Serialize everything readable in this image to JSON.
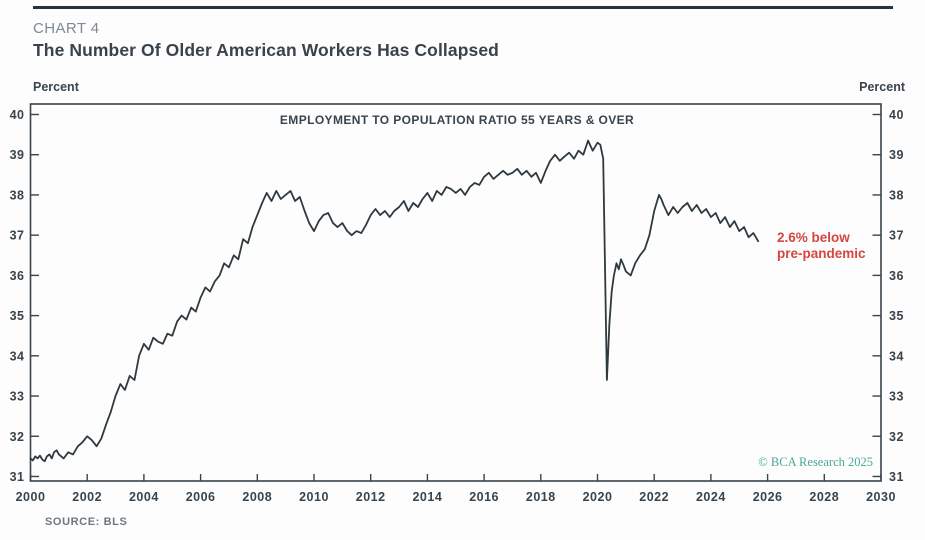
{
  "header": {
    "kicker": "CHART 4",
    "title": "The Number Of Older American Workers Has Collapsed"
  },
  "chart": {
    "left_unit": "Percent",
    "right_unit": "Percent",
    "series_label": "EMPLOYMENT TO POPULATION RATIO 55 YEARS & OVER",
    "annotation": {
      "text": "2.6% below\npre-pandemic",
      "color": "#d6453e"
    },
    "watermark": {
      "text": "© BCA Research 2025",
      "color": "#4aa89a"
    },
    "source": "SOURCE: BLS"
  },
  "chart_data": {
    "type": "line",
    "title": "EMPLOYMENT TO POPULATION RATIO 55 YEARS & OVER",
    "xlabel": "",
    "ylabel": "Percent",
    "xlim": [
      2000,
      2030
    ],
    "ylim": [
      30.9,
      40.3
    ],
    "grid": false,
    "legend_position": "none",
    "x_ticks": [
      2000,
      2002,
      2004,
      2006,
      2008,
      2010,
      2012,
      2014,
      2016,
      2018,
      2020,
      2022,
      2024,
      2026,
      2028,
      2030
    ],
    "y_ticks": [
      31,
      32,
      33,
      34,
      35,
      36,
      37,
      38,
      39,
      40
    ],
    "frame_color": "#39444c",
    "line_color": "#2e3940",
    "annotations": [
      {
        "text": "2.6% below pre-pandemic",
        "x": 2026.4,
        "y": 37.0,
        "color": "#d6453e"
      },
      {
        "text": "© BCA Research 2025",
        "x": 2027.5,
        "y": 31.5,
        "color": "#4aa89a"
      }
    ],
    "series": [
      {
        "name": "Employment to population ratio, 55 years & over",
        "points": [
          [
            2000.0,
            31.45
          ],
          [
            2000.08,
            31.4
          ],
          [
            2000.17,
            31.5
          ],
          [
            2000.25,
            31.45
          ],
          [
            2000.33,
            31.52
          ],
          [
            2000.42,
            31.42
          ],
          [
            2000.5,
            31.38
          ],
          [
            2000.58,
            31.5
          ],
          [
            2000.67,
            31.55
          ],
          [
            2000.75,
            31.45
          ],
          [
            2000.83,
            31.6
          ],
          [
            2000.92,
            31.65
          ],
          [
            2001.0,
            31.55
          ],
          [
            2001.17,
            31.45
          ],
          [
            2001.33,
            31.6
          ],
          [
            2001.5,
            31.55
          ],
          [
            2001.67,
            31.75
          ],
          [
            2001.83,
            31.85
          ],
          [
            2002.0,
            32.0
          ],
          [
            2002.17,
            31.9
          ],
          [
            2002.33,
            31.75
          ],
          [
            2002.5,
            31.95
          ],
          [
            2002.67,
            32.3
          ],
          [
            2002.83,
            32.6
          ],
          [
            2003.0,
            33.0
          ],
          [
            2003.17,
            33.3
          ],
          [
            2003.33,
            33.15
          ],
          [
            2003.5,
            33.5
          ],
          [
            2003.67,
            33.4
          ],
          [
            2003.83,
            34.0
          ],
          [
            2004.0,
            34.3
          ],
          [
            2004.17,
            34.15
          ],
          [
            2004.33,
            34.45
          ],
          [
            2004.5,
            34.35
          ],
          [
            2004.67,
            34.3
          ],
          [
            2004.83,
            34.55
          ],
          [
            2005.0,
            34.5
          ],
          [
            2005.17,
            34.85
          ],
          [
            2005.33,
            35.0
          ],
          [
            2005.5,
            34.9
          ],
          [
            2005.67,
            35.2
          ],
          [
            2005.83,
            35.1
          ],
          [
            2006.0,
            35.45
          ],
          [
            2006.17,
            35.7
          ],
          [
            2006.33,
            35.6
          ],
          [
            2006.5,
            35.85
          ],
          [
            2006.67,
            36.0
          ],
          [
            2006.83,
            36.3
          ],
          [
            2007.0,
            36.2
          ],
          [
            2007.17,
            36.5
          ],
          [
            2007.33,
            36.4
          ],
          [
            2007.5,
            36.9
          ],
          [
            2007.67,
            36.8
          ],
          [
            2007.83,
            37.2
          ],
          [
            2008.0,
            37.5
          ],
          [
            2008.17,
            37.8
          ],
          [
            2008.33,
            38.05
          ],
          [
            2008.5,
            37.85
          ],
          [
            2008.67,
            38.1
          ],
          [
            2008.83,
            37.9
          ],
          [
            2009.0,
            38.0
          ],
          [
            2009.17,
            38.1
          ],
          [
            2009.33,
            37.85
          ],
          [
            2009.5,
            37.95
          ],
          [
            2009.67,
            37.6
          ],
          [
            2009.83,
            37.3
          ],
          [
            2010.0,
            37.1
          ],
          [
            2010.17,
            37.35
          ],
          [
            2010.33,
            37.5
          ],
          [
            2010.5,
            37.55
          ],
          [
            2010.67,
            37.3
          ],
          [
            2010.83,
            37.2
          ],
          [
            2011.0,
            37.3
          ],
          [
            2011.17,
            37.1
          ],
          [
            2011.33,
            37.0
          ],
          [
            2011.5,
            37.1
          ],
          [
            2011.67,
            37.05
          ],
          [
            2011.83,
            37.25
          ],
          [
            2012.0,
            37.5
          ],
          [
            2012.17,
            37.65
          ],
          [
            2012.33,
            37.5
          ],
          [
            2012.5,
            37.6
          ],
          [
            2012.67,
            37.45
          ],
          [
            2012.83,
            37.6
          ],
          [
            2013.0,
            37.7
          ],
          [
            2013.17,
            37.85
          ],
          [
            2013.33,
            37.6
          ],
          [
            2013.5,
            37.8
          ],
          [
            2013.67,
            37.7
          ],
          [
            2013.83,
            37.9
          ],
          [
            2014.0,
            38.05
          ],
          [
            2014.17,
            37.85
          ],
          [
            2014.33,
            38.1
          ],
          [
            2014.5,
            38.0
          ],
          [
            2014.67,
            38.2
          ],
          [
            2014.83,
            38.15
          ],
          [
            2015.0,
            38.05
          ],
          [
            2015.17,
            38.15
          ],
          [
            2015.33,
            38.0
          ],
          [
            2015.5,
            38.2
          ],
          [
            2015.67,
            38.3
          ],
          [
            2015.83,
            38.25
          ],
          [
            2016.0,
            38.45
          ],
          [
            2016.17,
            38.55
          ],
          [
            2016.33,
            38.4
          ],
          [
            2016.5,
            38.5
          ],
          [
            2016.67,
            38.6
          ],
          [
            2016.83,
            38.5
          ],
          [
            2017.0,
            38.55
          ],
          [
            2017.17,
            38.65
          ],
          [
            2017.33,
            38.5
          ],
          [
            2017.5,
            38.6
          ],
          [
            2017.67,
            38.45
          ],
          [
            2017.83,
            38.55
          ],
          [
            2018.0,
            38.3
          ],
          [
            2018.17,
            38.6
          ],
          [
            2018.33,
            38.85
          ],
          [
            2018.5,
            39.0
          ],
          [
            2018.67,
            38.85
          ],
          [
            2018.83,
            38.95
          ],
          [
            2019.0,
            39.05
          ],
          [
            2019.17,
            38.9
          ],
          [
            2019.33,
            39.1
          ],
          [
            2019.5,
            39.0
          ],
          [
            2019.67,
            39.35
          ],
          [
            2019.83,
            39.1
          ],
          [
            2020.0,
            39.3
          ],
          [
            2020.1,
            39.25
          ],
          [
            2020.2,
            38.9
          ],
          [
            2020.33,
            33.4
          ],
          [
            2020.42,
            34.8
          ],
          [
            2020.5,
            35.6
          ],
          [
            2020.58,
            36.0
          ],
          [
            2020.67,
            36.3
          ],
          [
            2020.75,
            36.15
          ],
          [
            2020.83,
            36.4
          ],
          [
            2020.92,
            36.25
          ],
          [
            2021.0,
            36.1
          ],
          [
            2021.17,
            36.0
          ],
          [
            2021.33,
            36.3
          ],
          [
            2021.5,
            36.5
          ],
          [
            2021.67,
            36.65
          ],
          [
            2021.83,
            37.0
          ],
          [
            2022.0,
            37.6
          ],
          [
            2022.17,
            38.0
          ],
          [
            2022.25,
            37.9
          ],
          [
            2022.33,
            37.75
          ],
          [
            2022.5,
            37.5
          ],
          [
            2022.67,
            37.7
          ],
          [
            2022.83,
            37.55
          ],
          [
            2023.0,
            37.7
          ],
          [
            2023.17,
            37.8
          ],
          [
            2023.33,
            37.6
          ],
          [
            2023.5,
            37.75
          ],
          [
            2023.67,
            37.55
          ],
          [
            2023.83,
            37.65
          ],
          [
            2024.0,
            37.45
          ],
          [
            2024.17,
            37.55
          ],
          [
            2024.33,
            37.3
          ],
          [
            2024.5,
            37.45
          ],
          [
            2024.67,
            37.2
          ],
          [
            2024.83,
            37.35
          ],
          [
            2025.0,
            37.1
          ],
          [
            2025.17,
            37.2
          ],
          [
            2025.33,
            36.95
          ],
          [
            2025.5,
            37.05
          ],
          [
            2025.67,
            36.85
          ]
        ]
      }
    ]
  }
}
